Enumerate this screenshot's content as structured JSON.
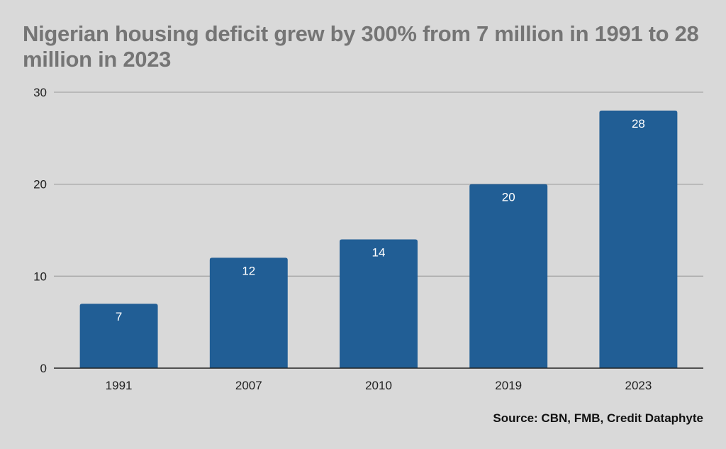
{
  "chart_data": {
    "type": "bar",
    "title": "Nigerian housing deficit grew by 300% from 7 million in 1991 to 28 million in 2023",
    "categories": [
      "1991",
      "2007",
      "2010",
      "2019",
      "2023"
    ],
    "values": [
      7,
      12,
      14,
      20,
      28
    ],
    "data_labels": [
      "7",
      "12",
      "14",
      "20",
      "28"
    ],
    "xlabel": "",
    "ylabel": "",
    "ylim": [
      0,
      30
    ],
    "yticks": [
      0,
      10,
      20,
      30
    ],
    "grid": true,
    "legend": "none",
    "bar_color": "#215e95",
    "source": "Source: CBN, FMB, Credit Dataphyte"
  }
}
